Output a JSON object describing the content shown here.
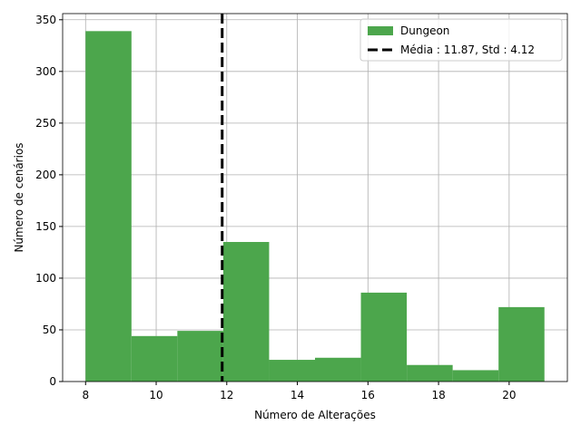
{
  "chart_data": {
    "type": "histogram",
    "xlabel": "Número de Alterações",
    "ylabel": "Número de cenários",
    "bins": [
      8,
      9.3,
      10.6,
      11.9,
      13.2,
      14.5,
      15.8,
      17.1,
      18.4,
      19.7,
      21
    ],
    "series": [
      {
        "name": "Dungeon",
        "color": "#4ca64c",
        "values": [
          339,
          44,
          49,
          135,
          21,
          23,
          86,
          16,
          11,
          72
        ]
      }
    ],
    "mean_line": {
      "name": "Média : 11.87, Std : 4.12",
      "value": 11.87,
      "color": "#000000"
    },
    "xlim": [
      7.35,
      21.65
    ],
    "xticks": [
      8,
      10,
      12,
      14,
      16,
      18,
      20
    ],
    "ylim": [
      0,
      355.95
    ],
    "yticks": [
      0,
      50,
      100,
      150,
      200,
      250,
      300,
      350
    ],
    "grid": true,
    "legend": "upper right"
  }
}
